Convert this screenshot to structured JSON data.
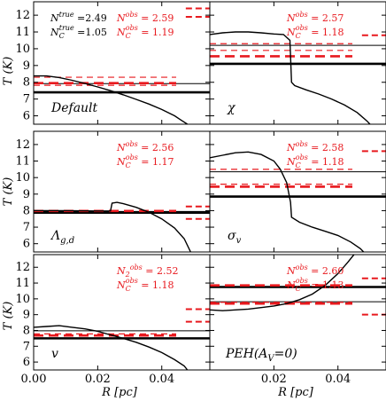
{
  "chart_data": {
    "type": "line",
    "ylabel": "T (K)",
    "xlabel": "R [pc]",
    "xlim": [
      0.0,
      0.055
    ],
    "ylim": [
      5.5,
      12.8
    ],
    "xticks": [
      "0.00",
      "0.02",
      "0.04"
    ],
    "xtick_values": [
      0.0,
      0.02,
      0.04
    ],
    "yticks": [
      "6",
      "7",
      "8",
      "9",
      "10",
      "11",
      "12"
    ],
    "ytick_values": [
      6,
      7,
      8,
      9,
      10,
      11,
      12
    ],
    "colors": {
      "curve": "#000000",
      "true": "#000000",
      "obs": "#e8191e",
      "annotation_obs": "#e8191e",
      "annotation_true": "#000000"
    },
    "panels": [
      {
        "label": "Default",
        "true_text": {
          "line1": "N",
          "sup1": "true",
          "val1": " =2.49",
          "line2": "N",
          "sub2": "C",
          "sup2": "true",
          "val2": " =1.05"
        },
        "obs_text": {
          "line1": "N",
          "sup1": "obs",
          "val1": " = 2.59",
          "line2": "N",
          "sub2": "C",
          "sup2": "obs",
          "val2": " = 1.19"
        },
        "curve": [
          [
            0.0,
            8.38
          ],
          [
            0.004,
            8.38
          ],
          [
            0.008,
            8.28
          ],
          [
            0.012,
            8.12
          ],
          [
            0.016,
            7.93
          ],
          [
            0.02,
            7.72
          ],
          [
            0.024,
            7.5
          ],
          [
            0.028,
            7.25
          ],
          [
            0.032,
            6.98
          ],
          [
            0.036,
            6.7
          ],
          [
            0.04,
            6.38
          ],
          [
            0.044,
            6.0
          ],
          [
            0.046,
            5.75
          ],
          [
            0.048,
            5.5
          ]
        ],
        "true_temps": [
          {
            "t": 7.92,
            "w": 1
          },
          {
            "t": 7.4,
            "w": 2.6
          }
        ],
        "obs_solid": [
          {
            "t": 7.95,
            "w": 2.6,
            "dash": true
          },
          {
            "t": 7.82,
            "w": 1.2,
            "dash": true
          },
          {
            "t": 8.3,
            "w": 1.2,
            "dash": true,
            "x0": 0.0
          }
        ],
        "obs_right": [
          12.4,
          11.9
        ]
      },
      {
        "label": "χ",
        "true_text": null,
        "obs_text": {
          "line1": "N",
          "sup1": "obs",
          "val1": " = 2.57",
          "line2": "N",
          "sub2": "C",
          "sup2": "obs",
          "val2": " = 1.18"
        },
        "curve": [
          [
            0.0,
            10.85
          ],
          [
            0.004,
            10.95
          ],
          [
            0.008,
            11.0
          ],
          [
            0.012,
            11.0
          ],
          [
            0.016,
            10.95
          ],
          [
            0.02,
            10.88
          ],
          [
            0.023,
            10.85
          ],
          [
            0.025,
            10.5
          ],
          [
            0.0255,
            8.0
          ],
          [
            0.0265,
            7.8
          ],
          [
            0.03,
            7.55
          ],
          [
            0.034,
            7.3
          ],
          [
            0.038,
            7.0
          ],
          [
            0.042,
            6.65
          ],
          [
            0.046,
            6.2
          ],
          [
            0.049,
            5.7
          ],
          [
            0.05,
            5.5
          ]
        ],
        "true_temps": [
          {
            "t": 10.2,
            "w": 1
          },
          {
            "t": 9.1,
            "w": 2.6
          }
        ],
        "obs_solid": [
          {
            "t": 10.3,
            "w": 1.2,
            "dash": true
          },
          {
            "t": 9.9,
            "w": 1.2,
            "dash": true
          },
          {
            "t": 9.55,
            "w": 2.6,
            "dash": true
          }
        ],
        "obs_right": [
          10.8
        ]
      },
      {
        "label": "Λ",
        "label_sub": "g,d",
        "true_text": null,
        "obs_text": {
          "line1": "N",
          "sup1": "obs",
          "val1": " = 2.56",
          "line2": "N",
          "sub2": "C",
          "sup2": "obs",
          "val2": " = 1.17"
        },
        "curve": [
          [
            0.0,
            8.0
          ],
          [
            0.01,
            8.0
          ],
          [
            0.02,
            7.98
          ],
          [
            0.024,
            7.98
          ],
          [
            0.0245,
            8.45
          ],
          [
            0.026,
            8.5
          ],
          [
            0.028,
            8.42
          ],
          [
            0.032,
            8.2
          ],
          [
            0.036,
            7.9
          ],
          [
            0.04,
            7.5
          ],
          [
            0.044,
            6.95
          ],
          [
            0.047,
            6.3
          ],
          [
            0.049,
            5.5
          ]
        ],
        "true_temps": [
          {
            "t": 7.95,
            "w": 1
          },
          {
            "t": 7.88,
            "w": 2.6
          }
        ],
        "obs_solid": [
          {
            "t": 7.98,
            "w": 2.6,
            "dash": true
          }
        ],
        "obs_right": [
          8.25,
          7.5
        ]
      },
      {
        "label": "σ",
        "label_sub": "v",
        "true_text": null,
        "obs_text": {
          "line1": "N",
          "sup1": "obs",
          "val1": " = 2.58",
          "line2": "N",
          "sub2": "C",
          "sup2": "obs",
          "val2": " = 1.18"
        },
        "curve": [
          [
            0.0,
            11.2
          ],
          [
            0.004,
            11.35
          ],
          [
            0.008,
            11.5
          ],
          [
            0.012,
            11.55
          ],
          [
            0.016,
            11.4
          ],
          [
            0.02,
            11.0
          ],
          [
            0.022,
            10.5
          ],
          [
            0.024,
            9.7
          ],
          [
            0.0252,
            8.5
          ],
          [
            0.0255,
            7.6
          ],
          [
            0.028,
            7.3
          ],
          [
            0.032,
            7.0
          ],
          [
            0.036,
            6.75
          ],
          [
            0.04,
            6.5
          ],
          [
            0.044,
            6.1
          ],
          [
            0.047,
            5.7
          ],
          [
            0.048,
            5.5
          ]
        ],
        "true_temps": [
          {
            "t": 10.35,
            "w": 1
          },
          {
            "t": 8.85,
            "w": 2.6
          }
        ],
        "obs_solid": [
          {
            "t": 10.5,
            "w": 1.2,
            "dash": true
          },
          {
            "t": 9.6,
            "w": 1.2,
            "dash": true
          },
          {
            "t": 9.45,
            "w": 2.6,
            "dash": true
          }
        ],
        "obs_right": [
          11.6
        ]
      },
      {
        "label": "v",
        "true_text": null,
        "obs_text": {
          "line1": "N",
          "sub1": "2",
          "sup1": "obs",
          "val1": " = 2.52",
          "line2": "N",
          "sub2": "C",
          "sup2": "obs",
          "val2": " = 1.18"
        },
        "curve": [
          [
            0.0,
            8.2
          ],
          [
            0.004,
            8.25
          ],
          [
            0.008,
            8.3
          ],
          [
            0.012,
            8.2
          ],
          [
            0.016,
            8.1
          ],
          [
            0.02,
            7.95
          ],
          [
            0.024,
            7.72
          ],
          [
            0.028,
            7.5
          ],
          [
            0.032,
            7.25
          ],
          [
            0.036,
            6.95
          ],
          [
            0.04,
            6.6
          ],
          [
            0.044,
            6.15
          ],
          [
            0.047,
            5.75
          ],
          [
            0.048,
            5.5
          ]
        ],
        "true_temps": [
          {
            "t": 7.98,
            "w": 1
          },
          {
            "t": 7.5,
            "w": 2.6
          }
        ],
        "obs_solid": [
          {
            "t": 7.78,
            "w": 1.2,
            "dash": true
          },
          {
            "t": 7.68,
            "w": 2.6,
            "dash": true
          }
        ],
        "obs_right": [
          9.35,
          8.55
        ]
      },
      {
        "label": "PEH(A",
        "label_sub": "V",
        "label_tail": "=0)",
        "true_text": null,
        "obs_text": {
          "line1": "N",
          "sup1": "obs",
          "val1": " = 2.60",
          "line2": "N",
          "sub2": "C",
          "sup2": "obs",
          "val2": " = 1.13"
        },
        "curve": [
          [
            0.0,
            9.3
          ],
          [
            0.004,
            9.25
          ],
          [
            0.008,
            9.3
          ],
          [
            0.012,
            9.35
          ],
          [
            0.016,
            9.45
          ],
          [
            0.02,
            9.55
          ],
          [
            0.024,
            9.7
          ],
          [
            0.028,
            9.95
          ],
          [
            0.032,
            10.3
          ],
          [
            0.036,
            10.85
          ],
          [
            0.04,
            11.6
          ],
          [
            0.043,
            12.3
          ],
          [
            0.045,
            12.8
          ]
        ],
        "true_temps": [
          {
            "t": 9.82,
            "w": 1
          },
          {
            "t": 10.75,
            "w": 2.6
          }
        ],
        "obs_solid": [
          {
            "t": 10.85,
            "w": 2.6,
            "dash": true
          },
          {
            "t": 9.78,
            "w": 1.2,
            "dash": true
          },
          {
            "t": 9.7,
            "w": 2.6,
            "dash": true
          }
        ],
        "obs_right": [
          11.3,
          9.0
        ]
      }
    ]
  }
}
